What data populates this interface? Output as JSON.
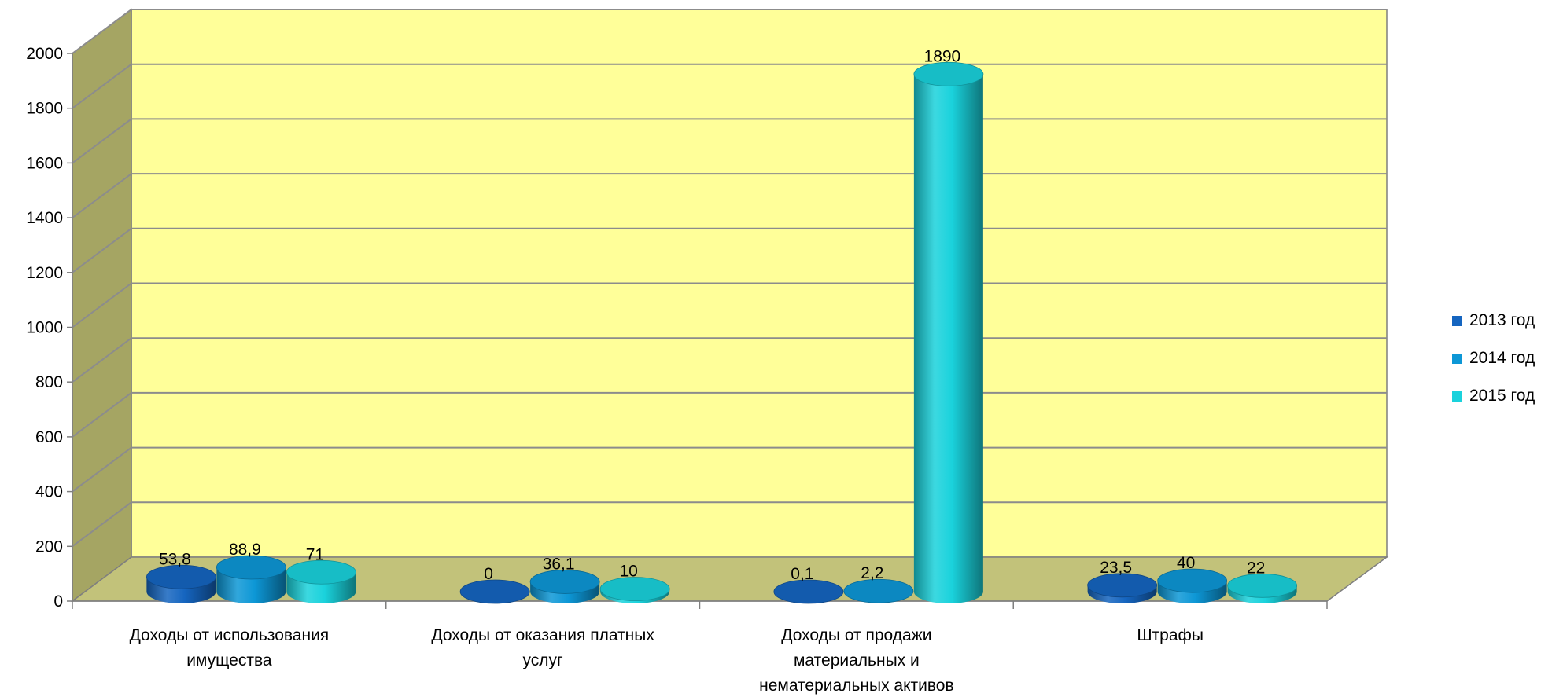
{
  "chart_data": {
    "type": "bar",
    "style": "3d-cylinder",
    "title": "",
    "xlabel": "",
    "ylabel": "",
    "ylim": [
      0,
      2000
    ],
    "yticks": [
      "0",
      "200",
      "400",
      "600",
      "800",
      "1000",
      "1200",
      "1400",
      "1600",
      "1800",
      "2000"
    ],
    "grid": true,
    "legend_position": "right",
    "categories": [
      [
        "Доходы от использования",
        "имущества"
      ],
      [
        "Доходы от оказания платных",
        "услуг"
      ],
      [
        "Доходы от продажи",
        "материальных и",
        "нематериальных активов"
      ],
      [
        "Штрафы"
      ]
    ],
    "series": [
      {
        "name": "2013 год",
        "values": [
          53.8,
          0,
          0.1,
          23.5
        ],
        "labels": [
          "53,8",
          "0",
          "0,1",
          "23,5"
        ],
        "color": "#1565c0"
      },
      {
        "name": "2014 год",
        "values": [
          88.9,
          36.1,
          2.2,
          40
        ],
        "labels": [
          "88,9",
          "36,1",
          "2,2",
          "40"
        ],
        "color": "#0d97d6"
      },
      {
        "name": "2015 год",
        "values": [
          71,
          10,
          1890,
          22
        ],
        "labels": [
          "71",
          "10",
          "1890",
          "22"
        ],
        "color": "#1ad2dc"
      }
    ],
    "colors": {
      "back_wall": "#ffff99",
      "side_wall": "#a5a563",
      "floor": "#c2c27a",
      "gridline": "#8c8c8c"
    }
  }
}
